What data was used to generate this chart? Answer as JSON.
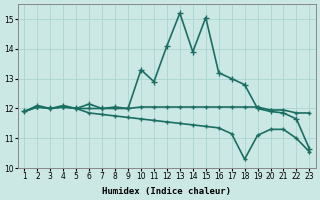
{
  "xlabel": "Humidex (Indice chaleur)",
  "background_color": "#cce8e4",
  "grid_color": "#aad4d0",
  "line_color": "#1a6e62",
  "xlim": [
    0.5,
    23.5
  ],
  "ylim": [
    10,
    15.5
  ],
  "yticks": [
    10,
    11,
    12,
    13,
    14,
    15
  ],
  "xticks": [
    1,
    2,
    3,
    4,
    5,
    6,
    7,
    8,
    9,
    10,
    11,
    12,
    13,
    14,
    15,
    16,
    17,
    18,
    19,
    20,
    21,
    22,
    23
  ],
  "series": [
    {
      "x": [
        1,
        2,
        3,
        4,
        5,
        6,
        7,
        8,
        9,
        10,
        11,
        12,
        13,
        14,
        15,
        16,
        17,
        18,
        19,
        20,
        21,
        22,
        23
      ],
      "y": [
        11.9,
        12.1,
        12.0,
        12.1,
        12.0,
        12.15,
        12.0,
        12.05,
        12.0,
        13.3,
        12.9,
        14.1,
        15.2,
        13.9,
        15.05,
        13.2,
        13.0,
        12.8,
        12.0,
        11.9,
        11.85,
        11.65,
        10.65
      ],
      "linewidth": 1.2,
      "marker": "+",
      "markersize": 4
    },
    {
      "x": [
        1,
        2,
        3,
        4,
        5,
        6,
        7,
        8,
        9,
        10,
        11,
        12,
        13,
        14,
        15,
        16,
        17,
        18,
        19,
        20,
        21,
        22,
        23
      ],
      "y": [
        11.9,
        12.05,
        12.0,
        12.05,
        12.0,
        12.0,
        12.0,
        12.0,
        12.0,
        12.05,
        12.05,
        12.05,
        12.05,
        12.05,
        12.05,
        12.05,
        12.05,
        12.05,
        12.05,
        11.95,
        11.95,
        11.85,
        11.85
      ],
      "linewidth": 1.2,
      "marker": "+",
      "markersize": 3
    },
    {
      "x": [
        1,
        2,
        3,
        4,
        5,
        6,
        7,
        8,
        9,
        10,
        11,
        12,
        13,
        14,
        15,
        16,
        17,
        18,
        19,
        20,
        21,
        22,
        23
      ],
      "y": [
        11.9,
        12.05,
        12.0,
        12.05,
        12.0,
        11.85,
        11.8,
        11.75,
        11.7,
        11.65,
        11.6,
        11.55,
        11.5,
        11.45,
        11.4,
        11.35,
        11.15,
        10.3,
        11.1,
        11.3,
        11.3,
        11.0,
        10.55
      ],
      "linewidth": 1.2,
      "marker": "+",
      "markersize": 3
    }
  ]
}
